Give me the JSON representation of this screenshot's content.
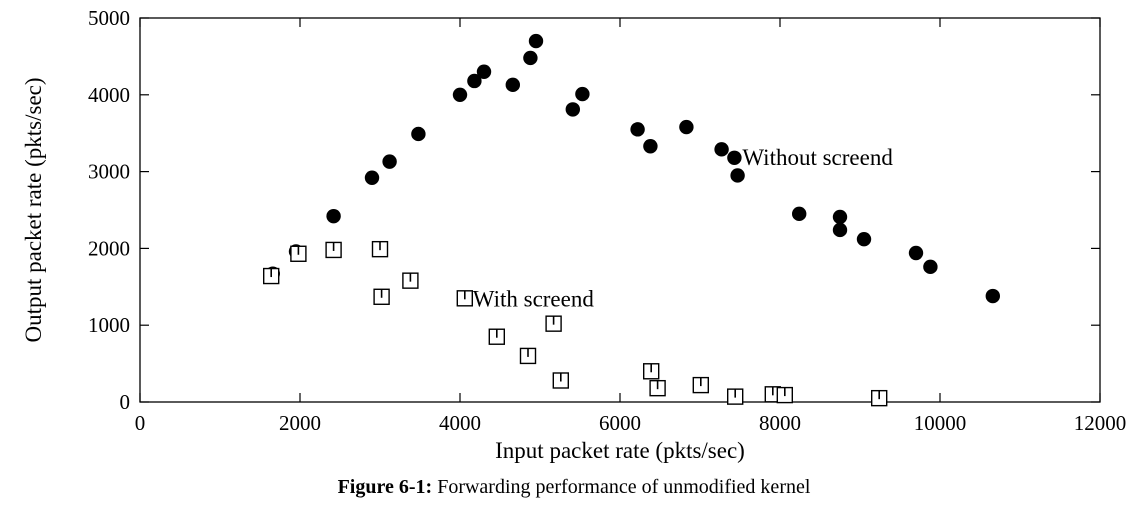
{
  "chart_data": {
    "type": "scatter",
    "xlabel": "Input packet rate (pkts/sec)",
    "ylabel": "Output packet rate (pkts/sec)",
    "xlim": [
      0,
      12000
    ],
    "ylim": [
      0,
      5000
    ],
    "x_ticks": [
      "0",
      "2000",
      "4000",
      "6000",
      "8000",
      "10000",
      "12000"
    ],
    "y_ticks": [
      "0",
      "1000",
      "2000",
      "3000",
      "4000",
      "5000"
    ],
    "grid": false,
    "series": [
      {
        "name": "Without screend",
        "marker": "filled-circle",
        "points": [
          [
            1660,
            1670
          ],
          [
            1950,
            1960
          ],
          [
            2420,
            2420
          ],
          [
            2900,
            2920
          ],
          [
            3120,
            3130
          ],
          [
            3480,
            3490
          ],
          [
            4000,
            4000
          ],
          [
            4180,
            4180
          ],
          [
            4300,
            4300
          ],
          [
            4660,
            4130
          ],
          [
            4880,
            4480
          ],
          [
            4950,
            4700
          ],
          [
            5410,
            3810
          ],
          [
            5530,
            4010
          ],
          [
            6220,
            3550
          ],
          [
            6380,
            3330
          ],
          [
            6830,
            3580
          ],
          [
            7270,
            3290
          ],
          [
            7430,
            3180
          ],
          [
            7470,
            2950
          ],
          [
            8240,
            2450
          ],
          [
            8750,
            2410
          ],
          [
            8750,
            2240
          ],
          [
            9050,
            2120
          ],
          [
            9700,
            1940
          ],
          [
            9880,
            1760
          ],
          [
            10660,
            1380
          ]
        ]
      },
      {
        "name": "With screend",
        "marker": "open-square",
        "points": [
          [
            1640,
            1640
          ],
          [
            1980,
            1930
          ],
          [
            2420,
            1980
          ],
          [
            3000,
            1990
          ],
          [
            3020,
            1370
          ],
          [
            3380,
            1580
          ],
          [
            4060,
            1350
          ],
          [
            4460,
            850
          ],
          [
            4850,
            600
          ],
          [
            5170,
            1020
          ],
          [
            5260,
            280
          ],
          [
            6390,
            400
          ],
          [
            6470,
            180
          ],
          [
            7010,
            220
          ],
          [
            7440,
            70
          ],
          [
            7910,
            100
          ],
          [
            8060,
            90
          ],
          [
            9240,
            50
          ]
        ]
      }
    ],
    "annotations": [
      {
        "text": "Without screend",
        "x": 7530,
        "y": 3190
      },
      {
        "text": "With screend",
        "x": 4160,
        "y": 1350
      }
    ]
  },
  "caption": {
    "number": "Figure 6-1:",
    "text": "Forwarding performance of unmodified kernel"
  }
}
